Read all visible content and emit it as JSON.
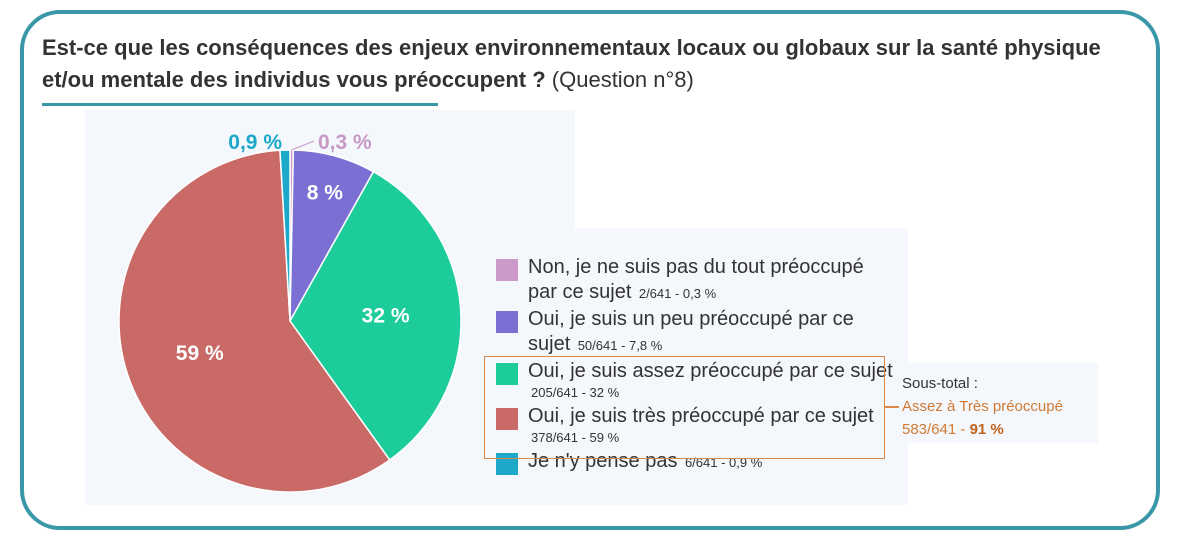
{
  "title": {
    "main": "Est-ce que les conséquences des enjeux environnementaux locaux ou globaux sur la santé physique et/ou mentale des individus vous préoccupent ?",
    "question": "(Question n°8)"
  },
  "chart_data": {
    "type": "pie",
    "total": 641,
    "slices": [
      {
        "label": "Non, je ne suis pas du tout préoccupé par ce sujet",
        "count": 2,
        "percent": 0.3,
        "percent_text": "0,3 %",
        "detail": "2/641  - 0,3 %",
        "color": "#cc99c9"
      },
      {
        "label": "Oui, je suis un peu préoccupé par ce sujet",
        "count": 50,
        "percent": 7.8,
        "percent_text": "8 %",
        "detail": "50/641  - 7,8 %",
        "color": "#7b6fd4"
      },
      {
        "label": "Oui, je suis assez préoccupé par ce sujet",
        "count": 205,
        "percent": 32,
        "percent_text": "32 %",
        "detail": "205/641  - 32 %",
        "color": "#1ccc9b"
      },
      {
        "label": "Oui, je suis très préoccupé par ce sujet",
        "count": 378,
        "percent": 59,
        "percent_text": "59 %",
        "detail": "378/641  - 59 %",
        "color": "#c96a66"
      },
      {
        "label": "Je n'y pense pas",
        "count": 6,
        "percent": 0.9,
        "percent_text": "0,9 %",
        "detail": "6/641  - 0,9 %",
        "color": "#1ca9c9"
      }
    ]
  },
  "subtotal": {
    "heading": "Sous-total :",
    "label": "Assez à Très préoccupé",
    "fraction": "583/641 - ",
    "percent": "91 %"
  }
}
